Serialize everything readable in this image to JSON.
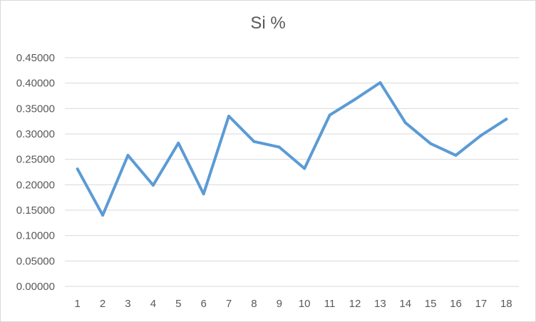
{
  "chart_data": {
    "type": "line",
    "title": "Si %",
    "xlabel": "",
    "ylabel": "",
    "categories": [
      "1",
      "2",
      "3",
      "4",
      "5",
      "6",
      "7",
      "8",
      "9",
      "10",
      "11",
      "12",
      "13",
      "14",
      "15",
      "16",
      "17",
      "18"
    ],
    "series": [
      {
        "values": [
          0.231,
          0.14,
          0.258,
          0.199,
          0.282,
          0.182,
          0.335,
          0.285,
          0.274,
          0.232,
          0.337,
          0.368,
          0.401,
          0.322,
          0.281,
          0.258,
          0.297,
          0.329
        ],
        "color": "#5B9BD5"
      }
    ],
    "ylim": [
      0,
      0.45
    ],
    "yticks": [
      "0.00000",
      "0.05000",
      "0.10000",
      "0.15000",
      "0.20000",
      "0.25000",
      "0.30000",
      "0.35000",
      "0.40000",
      "0.45000"
    ],
    "grid": true,
    "legend": "none"
  },
  "colors": {
    "series_line": "#5B9BD5",
    "gridline": "#d9d9d9",
    "axis_text": "#595959"
  }
}
